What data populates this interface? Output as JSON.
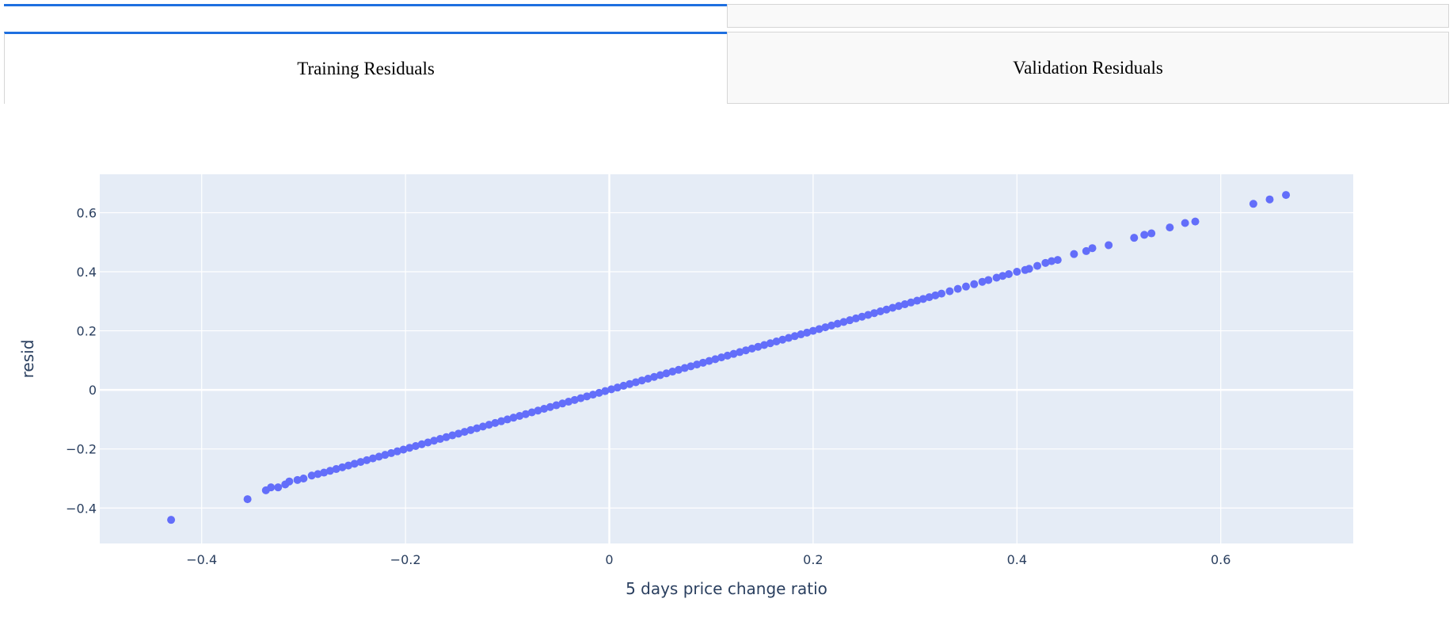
{
  "tabs": [
    {
      "label": "Training Residuals",
      "active": true
    },
    {
      "label": "Validation Residuals",
      "active": false
    }
  ],
  "colors": {
    "accent": "#1e6fe0",
    "plot_bg": "#e5ecf6",
    "marker": "#636efa",
    "text": "#2a3f5f"
  },
  "chart_data": {
    "type": "scatter",
    "xlabel": "5 days price change ratio",
    "ylabel": "resid",
    "xlim": [
      -0.5,
      0.73
    ],
    "ylim": [
      -0.52,
      0.73
    ],
    "xticks": [
      -0.4,
      -0.2,
      0,
      0.2,
      0.4,
      0.6
    ],
    "yticks": [
      -0.4,
      -0.2,
      0,
      0.2,
      0.4,
      0.6
    ],
    "xtick_labels": [
      "−0.4",
      "−0.2",
      "0",
      "0.2",
      "0.4",
      "0.6"
    ],
    "ytick_labels": [
      "−0.4",
      "−0.2",
      "0",
      "0.2",
      "0.4",
      "0.6"
    ],
    "grid": true,
    "series": [
      {
        "x": [
          -0.43,
          -0.355,
          -0.337,
          -0.332,
          -0.325,
          -0.318,
          -0.314,
          -0.306,
          -0.3,
          -0.292,
          -0.286,
          -0.28,
          -0.274,
          -0.268,
          -0.262,
          -0.256,
          -0.25,
          -0.244,
          -0.238,
          -0.232,
          -0.226,
          -0.22,
          -0.214,
          -0.208,
          -0.202,
          -0.196,
          -0.19,
          -0.184,
          -0.178,
          -0.172,
          -0.166,
          -0.16,
          -0.154,
          -0.148,
          -0.142,
          -0.136,
          -0.13,
          -0.124,
          -0.118,
          -0.112,
          -0.106,
          -0.1,
          -0.094,
          -0.088,
          -0.082,
          -0.076,
          -0.07,
          -0.064,
          -0.058,
          -0.052,
          -0.046,
          -0.04,
          -0.034,
          -0.028,
          -0.022,
          -0.016,
          -0.01,
          -0.004,
          0.002,
          0.008,
          0.014,
          0.02,
          0.026,
          0.032,
          0.038,
          0.044,
          0.05,
          0.056,
          0.062,
          0.068,
          0.074,
          0.08,
          0.086,
          0.092,
          0.098,
          0.104,
          0.11,
          0.116,
          0.122,
          0.128,
          0.134,
          0.14,
          0.146,
          0.152,
          0.158,
          0.164,
          0.17,
          0.176,
          0.182,
          0.188,
          0.194,
          0.2,
          0.206,
          0.212,
          0.218,
          0.224,
          0.23,
          0.236,
          0.242,
          0.248,
          0.254,
          0.26,
          0.266,
          0.272,
          0.278,
          0.284,
          0.29,
          0.296,
          0.302,
          0.308,
          0.314,
          0.32,
          0.326,
          0.334,
          0.342,
          0.35,
          0.358,
          0.366,
          0.372,
          0.38,
          0.386,
          0.392,
          0.4,
          0.408,
          0.412,
          0.42,
          0.428,
          0.434,
          0.44,
          0.456,
          0.468,
          0.474,
          0.49,
          0.515,
          0.525,
          0.532,
          0.55,
          0.565,
          0.575,
          0.632,
          0.648,
          0.664
        ],
        "y": [
          -0.44,
          -0.37,
          -0.34,
          -0.33,
          -0.33,
          -0.32,
          -0.31,
          -0.305,
          -0.3,
          -0.29,
          -0.285,
          -0.28,
          -0.274,
          -0.268,
          -0.262,
          -0.256,
          -0.25,
          -0.244,
          -0.238,
          -0.232,
          -0.226,
          -0.22,
          -0.214,
          -0.208,
          -0.202,
          -0.196,
          -0.19,
          -0.184,
          -0.178,
          -0.172,
          -0.166,
          -0.16,
          -0.154,
          -0.148,
          -0.142,
          -0.136,
          -0.13,
          -0.124,
          -0.118,
          -0.112,
          -0.106,
          -0.1,
          -0.094,
          -0.088,
          -0.082,
          -0.076,
          -0.07,
          -0.064,
          -0.058,
          -0.052,
          -0.046,
          -0.04,
          -0.034,
          -0.028,
          -0.022,
          -0.016,
          -0.01,
          -0.004,
          0.002,
          0.008,
          0.014,
          0.02,
          0.026,
          0.032,
          0.038,
          0.044,
          0.05,
          0.056,
          0.062,
          0.068,
          0.074,
          0.08,
          0.086,
          0.092,
          0.098,
          0.104,
          0.11,
          0.116,
          0.122,
          0.128,
          0.134,
          0.14,
          0.146,
          0.152,
          0.158,
          0.164,
          0.17,
          0.176,
          0.182,
          0.188,
          0.194,
          0.2,
          0.206,
          0.212,
          0.218,
          0.224,
          0.23,
          0.236,
          0.242,
          0.248,
          0.254,
          0.26,
          0.266,
          0.272,
          0.278,
          0.284,
          0.29,
          0.296,
          0.302,
          0.308,
          0.314,
          0.32,
          0.326,
          0.334,
          0.342,
          0.35,
          0.358,
          0.366,
          0.372,
          0.38,
          0.386,
          0.392,
          0.4,
          0.406,
          0.41,
          0.42,
          0.43,
          0.436,
          0.44,
          0.46,
          0.47,
          0.48,
          0.49,
          0.515,
          0.525,
          0.53,
          0.55,
          0.565,
          0.57,
          0.63,
          0.645,
          0.66
        ]
      }
    ]
  }
}
